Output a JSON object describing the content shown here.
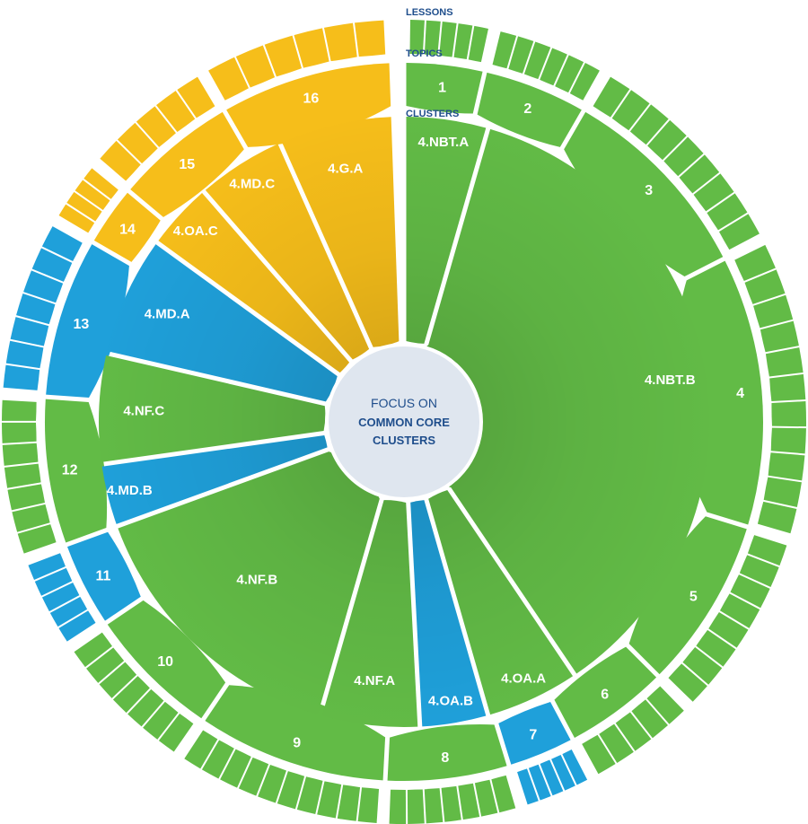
{
  "ring_titles": {
    "lessons": "LESSONS",
    "topics": "TOPICS",
    "clusters": "CLUSTERS"
  },
  "center": {
    "line1": "FOCUS ON",
    "line2": "COMMON CORE",
    "line3": "CLUSTERS"
  },
  "colors": {
    "green": "#62bb46",
    "blue": "#1fa0da",
    "yellow": "#f6be1a",
    "hub": "#dfe6ef"
  },
  "clusters": [
    {
      "label": "4.NBT.A",
      "color": "green",
      "start": 0,
      "end": 16
    },
    {
      "label": "4.NBT.B",
      "color": "green",
      "start": 16,
      "end": 146
    },
    {
      "label": "4.OA.A",
      "color": "green",
      "start": 146,
      "end": 164
    },
    {
      "label": "4.OA.B",
      "color": "blue",
      "start": 164,
      "end": 177
    },
    {
      "label": "4.NF.A",
      "color": "green",
      "start": 177,
      "end": 196
    },
    {
      "label": "4.NF.B",
      "color": "green",
      "start": 196,
      "end": 250
    },
    {
      "label": "4.MD.B",
      "color": "blue",
      "start": 250,
      "end": 262
    },
    {
      "label": "4.NF.C",
      "color": "green",
      "start": 262,
      "end": 283
    },
    {
      "label": "4.MD.A",
      "color": "blue",
      "start": 283,
      "end": 306
    },
    {
      "label": "4.OA.C",
      "color": "yellow",
      "start": 306,
      "end": 319
    },
    {
      "label": "4.MD.C",
      "color": "yellow",
      "start": 319,
      "end": 336
    },
    {
      "label": "4.G.A",
      "color": "yellow",
      "start": 336,
      "end": 358
    }
  ],
  "topics": [
    {
      "label": "1",
      "color": "green",
      "start": 0,
      "end": 13,
      "lessons": 5
    },
    {
      "label": "2",
      "color": "green",
      "start": 13,
      "end": 30,
      "lessons": 6
    },
    {
      "label": "3",
      "color": "green",
      "start": 30,
      "end": 63,
      "lessons": 9
    },
    {
      "label": "4",
      "color": "green",
      "start": 63,
      "end": 107,
      "lessons": 11
    },
    {
      "label": "5",
      "color": "green",
      "start": 107,
      "end": 135,
      "lessons": 8
    },
    {
      "label": "6",
      "color": "green",
      "start": 135,
      "end": 152,
      "lessons": 5
    },
    {
      "label": "7",
      "color": "blue",
      "start": 152,
      "end": 163,
      "lessons": 5
    },
    {
      "label": "8",
      "color": "green",
      "start": 163,
      "end": 183,
      "lessons": 7
    },
    {
      "label": "9",
      "color": "green",
      "start": 183,
      "end": 214,
      "lessons": 10
    },
    {
      "label": "10",
      "color": "green",
      "start": 214,
      "end": 236,
      "lessons": 7
    },
    {
      "label": "11",
      "color": "blue",
      "start": 236,
      "end": 250,
      "lessons": 5
    },
    {
      "label": "12",
      "color": "green",
      "start": 250,
      "end": 274,
      "lessons": 7
    },
    {
      "label": "13",
      "color": "blue",
      "start": 274,
      "end": 300,
      "lessons": 7
    },
    {
      "label": "14",
      "color": "yellow",
      "start": 300,
      "end": 310,
      "lessons": 4
    },
    {
      "label": "15",
      "color": "yellow",
      "start": 310,
      "end": 330,
      "lessons": 5
    },
    {
      "label": "16",
      "color": "yellow",
      "start": 330,
      "end": 358,
      "lessons": 6
    }
  ]
}
